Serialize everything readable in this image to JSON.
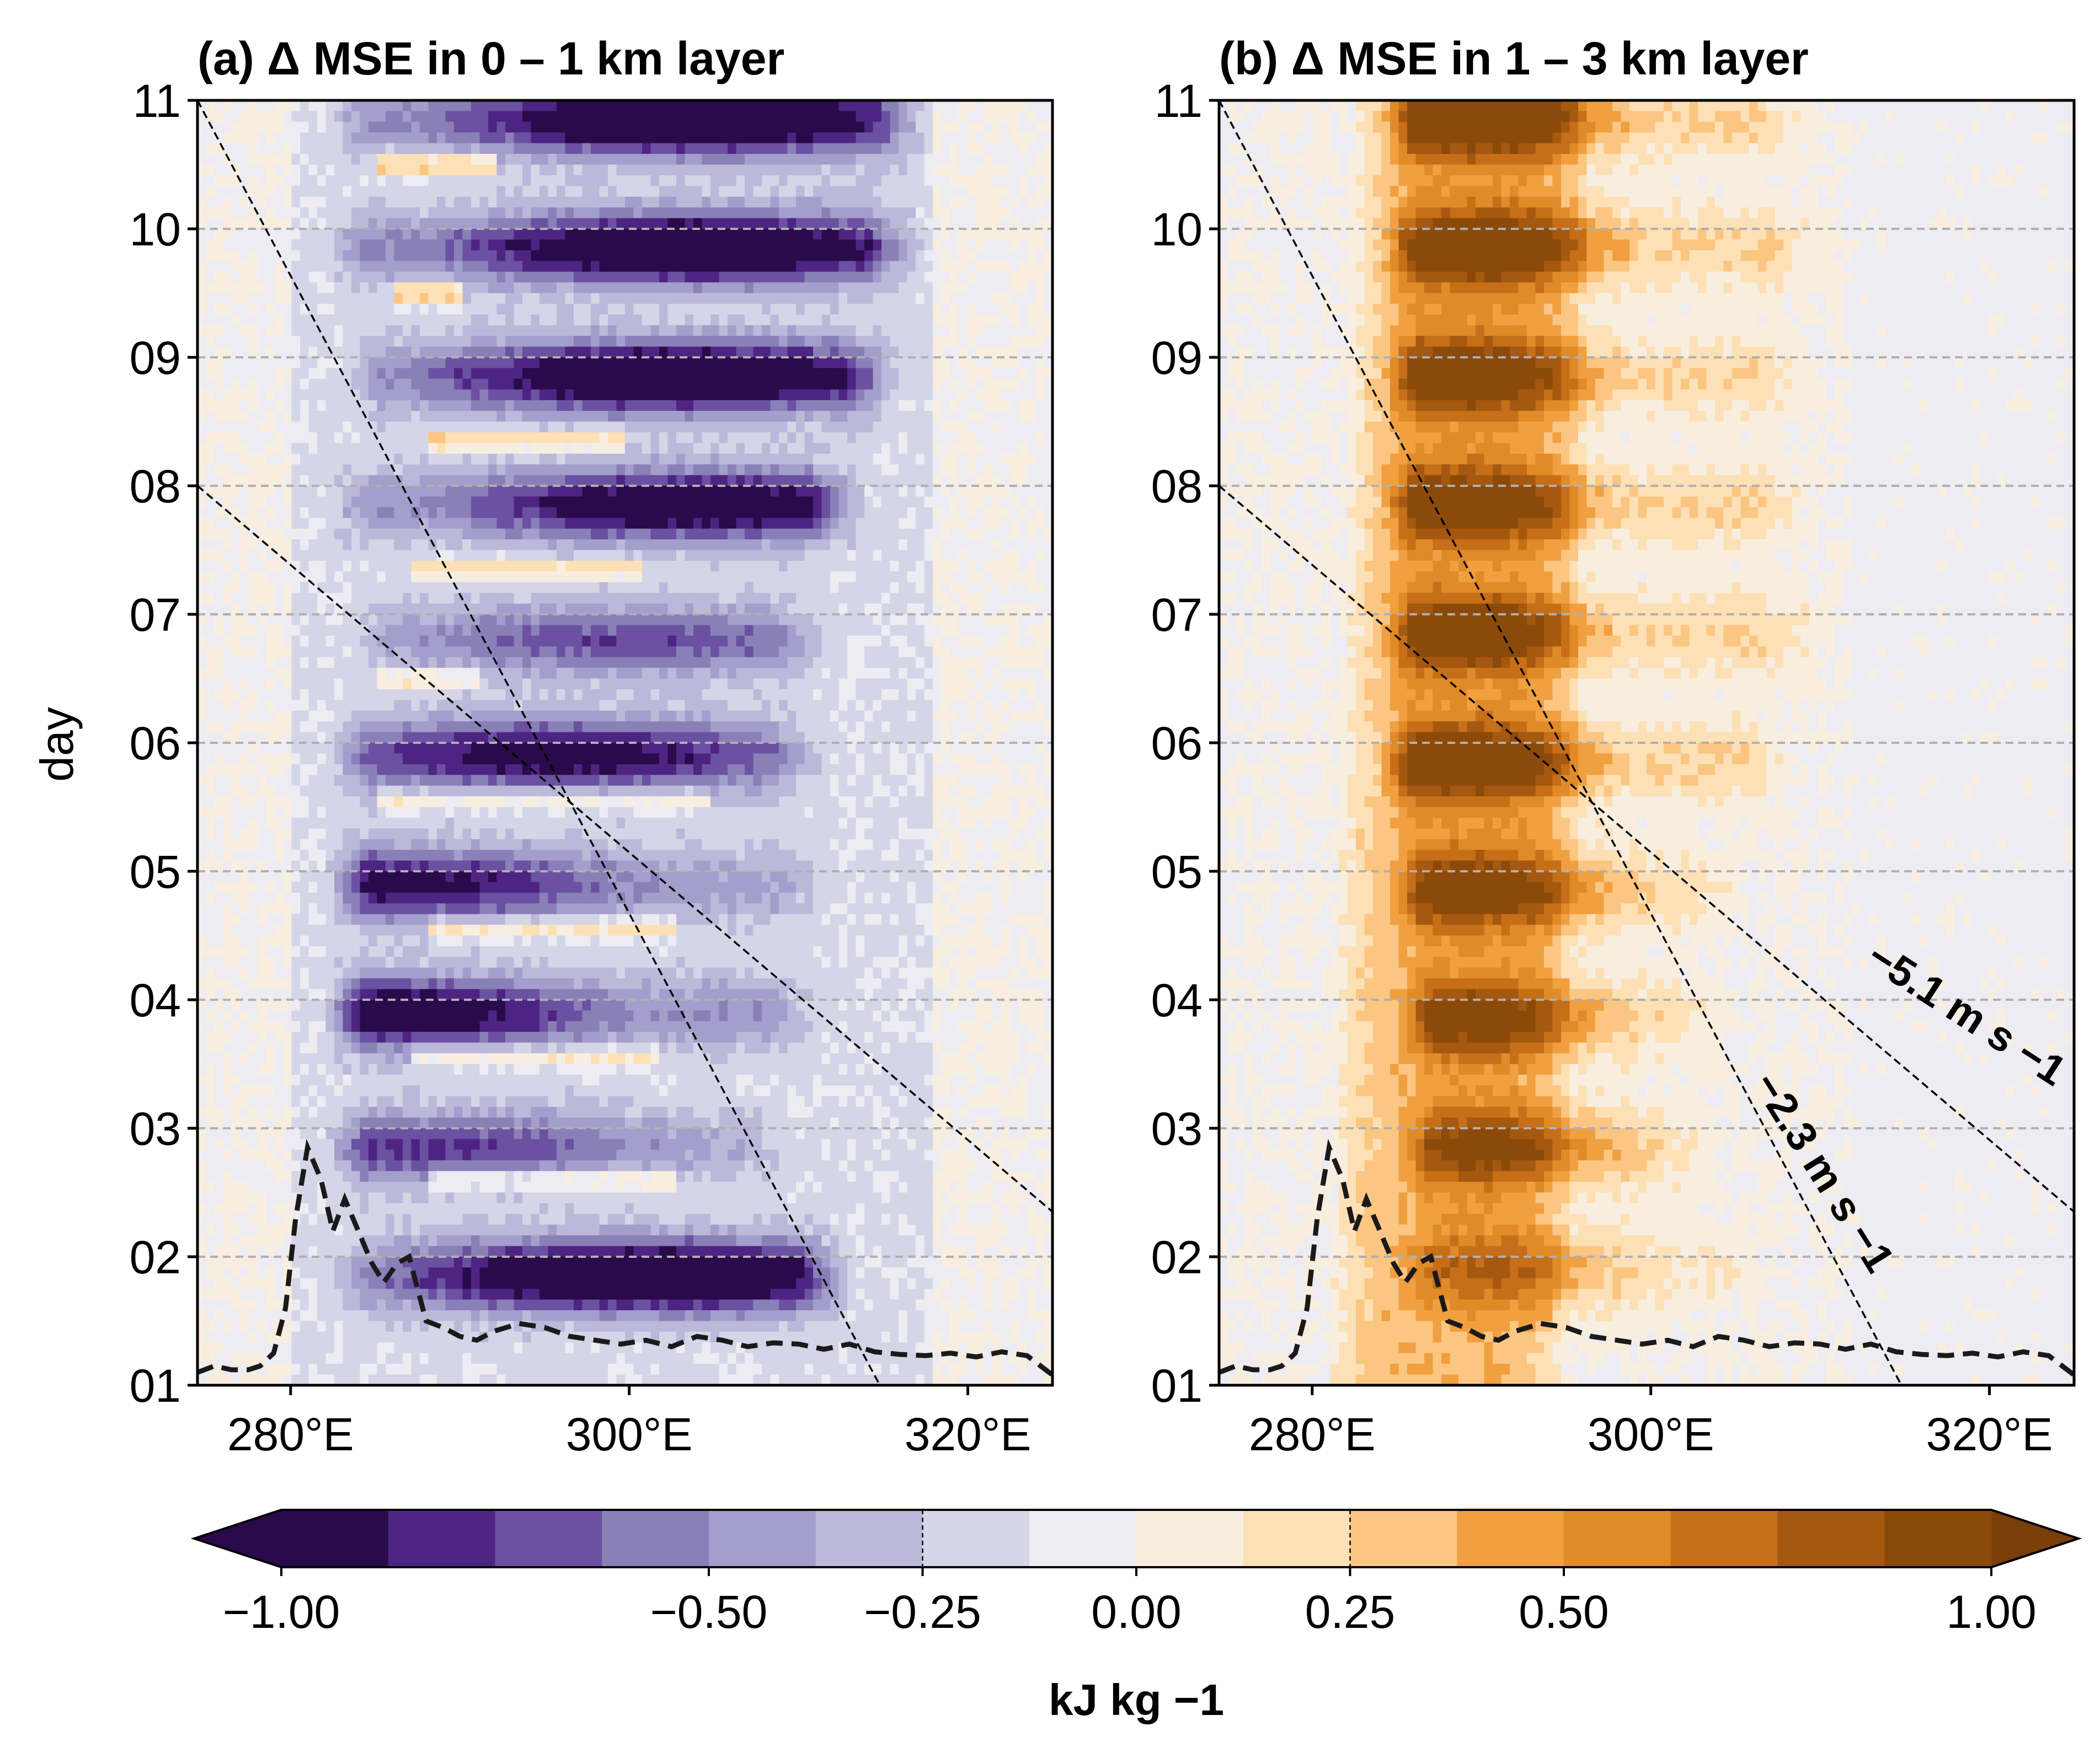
{
  "figure": {
    "colors": {
      "purple_deep": "#2d0a4e",
      "purple_mid": "#6b51a1",
      "purple_light": "#c2bedb",
      "neutral": "#efefef",
      "orange_light": "#fde0b5",
      "orange_mid": "#f0a040",
      "orange_deep": "#8c4a0a",
      "grid": "#b0b0b0"
    }
  },
  "chart_data": [
    {
      "type": "heatmap",
      "panel": "a",
      "title": "(a) Δ MSE in 0 – 1 km layer",
      "xlabel": "",
      "ylabel": "day",
      "x_ticks": [
        "280°E",
        "300°E",
        "320°E"
      ],
      "x_tick_values": [
        280,
        300,
        320
      ],
      "xlim": [
        274.5,
        325
      ],
      "y_ticks": [
        "01",
        "02",
        "03",
        "04",
        "05",
        "06",
        "07",
        "08",
        "09",
        "10",
        "11"
      ],
      "y_tick_values": [
        1,
        2,
        3,
        4,
        5,
        6,
        7,
        8,
        9,
        10,
        11
      ],
      "ylim": [
        1,
        11
      ],
      "grid": "horizontal dashed at each day",
      "field_sign": "negative",
      "bands": [
        {
          "day": 1.85,
          "x0": 282.2,
          "x1": 313.5,
          "peak_x": 301,
          "amp": 1.0
        },
        {
          "day": 2.85,
          "x0": 282.0,
          "x1": 310.0,
          "peak_x": 288,
          "amp": 0.55
        },
        {
          "day": 3.9,
          "x0": 282.0,
          "x1": 311.5,
          "peak_x": 284,
          "amp": 0.85
        },
        {
          "day": 4.9,
          "x0": 282.0,
          "x1": 312.0,
          "peak_x": 286,
          "amp": 0.7
        },
        {
          "day": 5.9,
          "x0": 282.0,
          "x1": 312.0,
          "peak_x": 296,
          "amp": 0.75
        },
        {
          "day": 6.8,
          "x0": 283.0,
          "x1": 312.0,
          "peak_x": 300,
          "amp": 0.5
        },
        {
          "day": 7.85,
          "x0": 282.0,
          "x1": 314.0,
          "peak_x": 304,
          "amp": 0.85
        },
        {
          "day": 8.85,
          "x0": 283.0,
          "x1": 316.5,
          "peak_x": 303,
          "amp": 0.95
        },
        {
          "day": 9.85,
          "x0": 282.0,
          "x1": 317.5,
          "peak_x": 304,
          "amp": 0.95
        },
        {
          "day": 10.85,
          "x0": 282.0,
          "x1": 318.0,
          "peak_x": 304,
          "amp": 0.95
        }
      ],
      "minor_bands": [
        {
          "day": 2.6,
          "x0": 288,
          "x1": 303,
          "amp": 0.4
        },
        {
          "day": 3.55,
          "x0": 287,
          "x1": 302,
          "amp": 0.35
        },
        {
          "day": 4.55,
          "x0": 288,
          "x1": 303,
          "amp": 0.4
        },
        {
          "day": 5.55,
          "x0": 285,
          "x1": 305,
          "amp": 0.35
        },
        {
          "day": 6.5,
          "x0": 285,
          "x1": 291,
          "amp": 0.4
        },
        {
          "day": 7.35,
          "x0": 287,
          "x1": 301,
          "amp": 0.4
        },
        {
          "day": 8.35,
          "x0": 288,
          "x1": 300,
          "amp": 0.45
        },
        {
          "day": 9.5,
          "x0": 286,
          "x1": 290,
          "amp": 0.6
        },
        {
          "day": 10.5,
          "x0": 285,
          "x1": 292,
          "amp": 0.55
        }
      ],
      "precip_curve": {
        "x": [
          274.5,
          275.5,
          276.5,
          277.5,
          278.2,
          279.0,
          279.7,
          280.3,
          281.0,
          281.8,
          282.5,
          283.2,
          284.0,
          284.8,
          285.5,
          286.3,
          287.0,
          288.0,
          289.0,
          290.0,
          291.0,
          292.0,
          293.5,
          295.0,
          296.5,
          298.0,
          299.5,
          301.0,
          302.5,
          304.0,
          305.5,
          307.0,
          308.5,
          310.0,
          311.5,
          313.0,
          314.5,
          316.0,
          317.5,
          319.0,
          320.5,
          322.0,
          323.5,
          325.0
        ],
        "y": [
          1.1,
          1.15,
          1.12,
          1.12,
          1.15,
          1.25,
          1.6,
          2.3,
          2.85,
          2.6,
          2.2,
          2.45,
          2.2,
          1.95,
          1.8,
          1.95,
          2.0,
          1.5,
          1.45,
          1.38,
          1.35,
          1.42,
          1.48,
          1.45,
          1.38,
          1.35,
          1.32,
          1.35,
          1.3,
          1.38,
          1.35,
          1.3,
          1.33,
          1.32,
          1.28,
          1.32,
          1.26,
          1.24,
          1.23,
          1.25,
          1.22,
          1.26,
          1.23,
          1.08
        ]
      },
      "speed_lines": [
        {
          "x": [
            274.5,
            314.8
          ],
          "y": [
            11.0,
            1.0
          ]
        },
        {
          "x": [
            274.5,
            325.0
          ],
          "y": [
            8.0,
            2.35
          ]
        }
      ]
    },
    {
      "type": "heatmap",
      "panel": "b",
      "title": "(b) Δ MSE in 1 – 3 km layer",
      "xlabel": "",
      "ylabel": "",
      "x_ticks": [
        "280°E",
        "300°E",
        "320°E"
      ],
      "x_tick_values": [
        280,
        300,
        320
      ],
      "xlim": [
        274.5,
        325
      ],
      "y_ticks": [
        "01",
        "02",
        "03",
        "04",
        "05",
        "06",
        "07",
        "08",
        "09",
        "10",
        "11"
      ],
      "y_tick_values": [
        1,
        2,
        3,
        4,
        5,
        6,
        7,
        8,
        9,
        10,
        11
      ],
      "ylim": [
        1,
        11
      ],
      "grid": "horizontal dashed at each day",
      "field_sign": "positive",
      "column": {
        "x_center_at_day1": 288.0,
        "x_center_at_day11": 289.5,
        "width": 11.5
      },
      "bands": [
        {
          "day": 1.9,
          "x0": 285,
          "x1": 307.5,
          "peak_x": 292,
          "amp": 0.45
        },
        {
          "day": 2.85,
          "x0": 285,
          "x1": 305,
          "peak_x": 291,
          "amp": 0.65
        },
        {
          "day": 3.85,
          "x0": 285,
          "x1": 305,
          "peak_x": 290,
          "amp": 0.7
        },
        {
          "day": 4.85,
          "x0": 284.5,
          "x1": 306,
          "peak_x": 290,
          "amp": 0.75
        },
        {
          "day": 5.85,
          "x0": 284,
          "x1": 309,
          "peak_x": 289,
          "amp": 0.85
        },
        {
          "day": 6.85,
          "x0": 284,
          "x1": 311,
          "peak_x": 289,
          "amp": 0.8
        },
        {
          "day": 7.85,
          "x0": 284,
          "x1": 310,
          "peak_x": 289,
          "amp": 0.8
        },
        {
          "day": 8.85,
          "x0": 284,
          "x1": 310,
          "peak_x": 289,
          "amp": 0.8
        },
        {
          "day": 9.85,
          "x0": 284,
          "x1": 311,
          "peak_x": 290,
          "amp": 0.85
        },
        {
          "day": 10.85,
          "x0": 284,
          "x1": 310,
          "peak_x": 290,
          "amp": 0.85
        }
      ],
      "precip_curve": {
        "x": [
          274.5,
          275.5,
          276.5,
          277.5,
          278.2,
          279.0,
          279.7,
          280.3,
          281.0,
          281.8,
          282.5,
          283.2,
          284.0,
          284.8,
          285.5,
          286.3,
          287.0,
          288.0,
          289.0,
          290.0,
          291.0,
          292.0,
          293.5,
          295.0,
          296.5,
          298.0,
          299.5,
          301.0,
          302.5,
          304.0,
          305.5,
          307.0,
          308.5,
          310.0,
          311.5,
          313.0,
          314.5,
          316.0,
          317.5,
          319.0,
          320.5,
          322.0,
          323.5,
          325.0
        ],
        "y": [
          1.1,
          1.15,
          1.12,
          1.12,
          1.15,
          1.25,
          1.6,
          2.3,
          2.85,
          2.6,
          2.2,
          2.45,
          2.2,
          1.95,
          1.8,
          1.95,
          2.0,
          1.5,
          1.45,
          1.38,
          1.35,
          1.42,
          1.48,
          1.45,
          1.38,
          1.35,
          1.32,
          1.35,
          1.3,
          1.38,
          1.35,
          1.3,
          1.33,
          1.32,
          1.28,
          1.32,
          1.26,
          1.24,
          1.23,
          1.25,
          1.22,
          1.26,
          1.23,
          1.08
        ]
      },
      "speed_lines": [
        {
          "x": [
            274.5,
            314.8
          ],
          "y": [
            11.0,
            1.0
          ]
        },
        {
          "x": [
            274.5,
            325.0
          ],
          "y": [
            8.0,
            2.35
          ]
        }
      ],
      "annotations": [
        {
          "text": "−5.1 m s −1",
          "anchor_x": 318.2,
          "anchor_y": 3.8,
          "angle": 33
        },
        {
          "text": "−2.3 m s −1",
          "anchor_x": 309.5,
          "anchor_y": 2.6,
          "angle": 58
        }
      ]
    }
  ],
  "colorbar": {
    "label": "kJ kg −1",
    "tick_labels": [
      "−1.00",
      "−0.50",
      "−0.25",
      "0.00",
      "0.25",
      "0.50",
      "1.00"
    ],
    "tick_values": [
      -1.0,
      -0.5,
      -0.25,
      0.0,
      0.25,
      0.5,
      1.0
    ],
    "levels": [
      -1.0,
      -0.875,
      -0.75,
      -0.625,
      -0.5,
      -0.375,
      -0.25,
      -0.125,
      0.0,
      0.125,
      0.25,
      0.375,
      0.5,
      0.625,
      0.75,
      0.875,
      1.0
    ],
    "contour_marks": [
      -0.25,
      0.25
    ],
    "colors": [
      "#2a0a4a",
      "#4e2483",
      "#6b51a1",
      "#8a80b8",
      "#a39ecb",
      "#bcb8da",
      "#d5d5e8",
      "#ececf2",
      "#f8eee0",
      "#fde0b5",
      "#fbc682",
      "#f0a040",
      "#e08a28",
      "#c66e18",
      "#a5580f",
      "#8c4a0a"
    ],
    "extend_low": "#2a0a4a",
    "extend_high": "#7a3e08"
  }
}
